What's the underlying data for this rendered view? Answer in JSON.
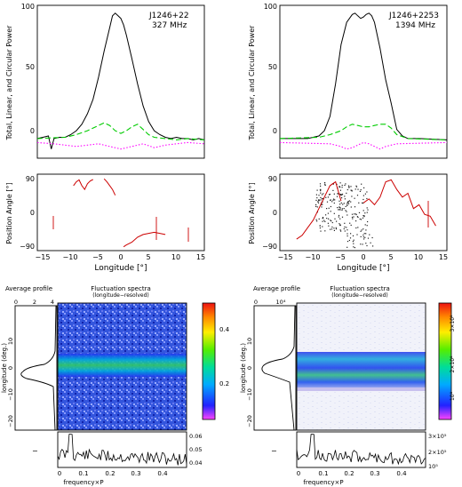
{
  "chart_data": [
    {
      "type": "line",
      "title": "J1246+22",
      "subtitle": "327 MHz",
      "ylabel": "Total, Linear, and Circular Power",
      "xlim": [
        -15,
        15
      ],
      "ylim": [
        -12,
        105
      ],
      "yticks": [
        "0",
        "50",
        "100"
      ],
      "series": [
        {
          "name": "total",
          "color": "#000000",
          "x": [
            -15,
            -14,
            -13,
            -12.5,
            -12,
            -11,
            -10,
            -9,
            -8,
            -7,
            -6,
            -5,
            -4,
            -3,
            -2,
            -1.5,
            -1,
            -0.5,
            0,
            0.5,
            1,
            2,
            3,
            4,
            5,
            6,
            7,
            8,
            9,
            10,
            11,
            12,
            13,
            14,
            15
          ],
          "y": [
            3,
            4,
            5,
            -5,
            3,
            4,
            4,
            6,
            9,
            14,
            22,
            33,
            50,
            70,
            88,
            97,
            99,
            97,
            95,
            90,
            82,
            64,
            45,
            28,
            16,
            9,
            6,
            4,
            3,
            4,
            3,
            3,
            2,
            3,
            2
          ]
        },
        {
          "name": "linear",
          "color": "#00cc00",
          "x": [
            -15,
            -10,
            -8,
            -6,
            -4,
            -3,
            -2,
            -1,
            0,
            1,
            2,
            3,
            4,
            5,
            6,
            8,
            10,
            12,
            15
          ],
          "y": [
            3,
            4,
            6,
            9,
            13,
            15,
            13,
            9,
            7,
            9,
            12,
            14,
            10,
            6,
            4,
            3,
            2,
            3,
            2
          ]
        },
        {
          "name": "circular",
          "color": "#ff00ff",
          "x": [
            -15,
            -12,
            -10,
            -8,
            -6,
            -4,
            -2,
            0,
            2,
            4,
            6,
            8,
            10,
            12,
            15
          ],
          "y": [
            0,
            -1,
            -2,
            -3,
            -2,
            -1,
            -3,
            -5,
            -3,
            -1,
            -4,
            -2,
            -1,
            0,
            -1
          ]
        }
      ]
    },
    {
      "type": "line",
      "title": "J1246+2253",
      "subtitle": "1394 MHz",
      "ylabel": "Total, Linear, and Circular Power",
      "xlim": [
        -15,
        15
      ],
      "ylim": [
        -12,
        105
      ],
      "yticks": [
        "0",
        "50",
        "100"
      ],
      "series": [
        {
          "name": "total",
          "color": "#000000",
          "x": [
            -15,
            -12,
            -10,
            -8,
            -7,
            -6,
            -5,
            -4,
            -3,
            -2,
            -1.5,
            -1,
            -0.5,
            0,
            0.5,
            1,
            1.5,
            2,
            3,
            4,
            5,
            6,
            7,
            8,
            10,
            15
          ],
          "y": [
            3,
            3,
            3,
            5,
            9,
            20,
            45,
            75,
            92,
            98,
            99,
            97,
            95,
            96,
            98,
            99,
            97,
            92,
            72,
            48,
            30,
            10,
            5,
            3,
            3,
            2
          ]
        },
        {
          "name": "linear",
          "color": "#00cc00",
          "x": [
            -15,
            -8,
            -6,
            -4,
            -3,
            -2,
            -1,
            0,
            1,
            2,
            3,
            4,
            5,
            6,
            8,
            15
          ],
          "y": [
            3,
            4,
            6,
            9,
            12,
            14,
            13,
            12,
            12,
            13,
            14,
            14,
            11,
            6,
            3,
            2
          ]
        },
        {
          "name": "circular",
          "color": "#ff00ff",
          "x": [
            -15,
            -6,
            -4,
            -3,
            -2,
            -1,
            0,
            1,
            2,
            3,
            4,
            6,
            15
          ],
          "y": [
            0,
            -1,
            -3,
            -5,
            -4,
            -2,
            0,
            -1,
            -3,
            -5,
            -3,
            -1,
            0
          ]
        }
      ]
    },
    {
      "type": "scatter",
      "ylabel": "Position Angle [°]",
      "xlabel": "Longitude [°]",
      "xlim": [
        -15,
        15
      ],
      "ylim": [
        -100,
        100
      ],
      "xticks": [
        "−15",
        "−10",
        "−5",
        "0",
        "5",
        "10",
        "15"
      ],
      "yticks": [
        "90",
        "0",
        "−90"
      ],
      "series": [
        {
          "name": "PA",
          "color": "#cc0000",
          "x": [
            -8.5,
            -8,
            -7.5,
            -7,
            -6.5,
            -6,
            -5.5,
            -5
          ],
          "y": [
            70,
            80,
            85,
            70,
            60,
            75,
            82,
            86
          ]
        },
        {
          "name": "PA",
          "color": "#cc0000",
          "x": [
            -3,
            -2.5,
            -2,
            -1.5,
            -1
          ],
          "y": [
            88,
            80,
            70,
            60,
            45
          ]
        },
        {
          "name": "PA",
          "color": "#cc0000",
          "x": [
            0.5,
            1,
            2,
            3,
            4,
            5,
            6,
            7,
            8
          ],
          "y": [
            -90,
            -85,
            -78,
            -65,
            -58,
            -55,
            -52,
            -55,
            -58
          ]
        }
      ]
    },
    {
      "type": "scatter",
      "ylabel": "Position Angle [°]",
      "xlabel": "Longitude [°]",
      "xlim": [
        -15,
        15
      ],
      "ylim": [
        -100,
        100
      ],
      "xticks": [
        "−15",
        "−10",
        "−5",
        "0",
        "5",
        "10",
        "15"
      ],
      "yticks": [
        "90",
        "0",
        "−90"
      ],
      "series": [
        {
          "name": "PA",
          "color": "#cc0000",
          "x": [
            -12,
            -11,
            -10,
            -9,
            -8,
            -7,
            -6,
            -5,
            -4
          ],
          "y": [
            -70,
            -60,
            -40,
            -20,
            10,
            40,
            70,
            80,
            30
          ]
        },
        {
          "name": "PA",
          "color": "#cc0000",
          "x": [
            0,
            1,
            2,
            3,
            4,
            5,
            6,
            7,
            8,
            9,
            10,
            11,
            12,
            13
          ],
          "y": [
            25,
            35,
            20,
            40,
            80,
            85,
            60,
            40,
            50,
            10,
            20,
            -5,
            -10,
            -35
          ]
        }
      ]
    },
    {
      "type": "heatmap",
      "title": "Fluctuation spectra",
      "subtitle": "(longitude−resolved)",
      "side_title": "Average profile",
      "xlabel": "frequency×P",
      "ylabel": "longitude (deg.)",
      "xlim": [
        0,
        0.5
      ],
      "ylim": [
        -20,
        20
      ],
      "xticks": [
        "0",
        "0.1",
        "0.2",
        "0.3",
        "0.4"
      ],
      "yticks": [
        "−20",
        "−10",
        "0",
        "10"
      ],
      "side_ticks": [
        "0",
        "2",
        "4"
      ],
      "colorbar_ticks": [
        "0.2",
        "0.4"
      ],
      "bottom_ticks": [
        "0.04",
        "0.05",
        "0.06"
      ],
      "bottom_ylabel": "−"
    },
    {
      "type": "heatmap",
      "title": "Fluctuation spectra",
      "subtitle": "(longitude−resolved)",
      "side_title": "Average profile",
      "xlabel": "frequency×P",
      "ylabel": "longitude (deg.)",
      "xlim": [
        0,
        0.5
      ],
      "ylim": [
        -20,
        20
      ],
      "xticks": [
        "0",
        "0.1",
        "0.2",
        "0.3",
        "0.4"
      ],
      "yticks": [
        "−20",
        "−10",
        "0",
        "10"
      ],
      "side_ticks": [
        "0",
        "10⁴"
      ],
      "colorbar_ticks": [
        "10⁸",
        "2×10⁸",
        "3×10⁸"
      ],
      "bottom_ticks": [
        "10⁵",
        "2×10⁵",
        "3×10⁵"
      ],
      "bottom_ylabel": "−"
    }
  ]
}
